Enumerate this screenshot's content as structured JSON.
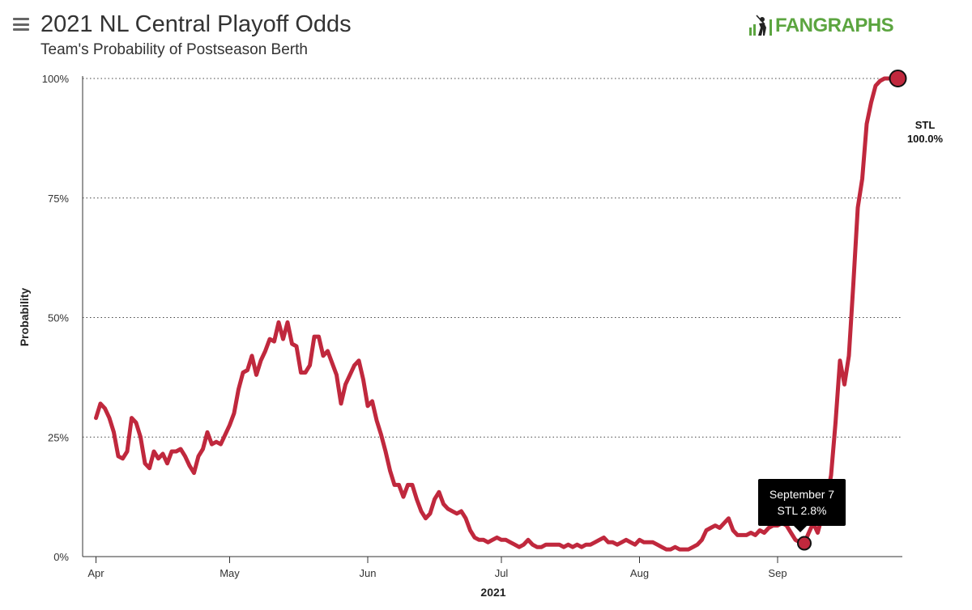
{
  "header": {
    "title": "2021 NL Central Playoff Odds",
    "subtitle": "Team's Probability of Postseason Berth",
    "logo_text": "FANGRAPHS"
  },
  "icons": {
    "menu": "hamburger-menu-icon",
    "logo": "batter-silhouette-icon"
  },
  "colors": {
    "series": "#c0283d",
    "logo": "#5ca540",
    "tooltip_bg": "#000000"
  },
  "tooltip": {
    "date": "September 7",
    "value": "STL 2.8%"
  },
  "end_label": {
    "team": "STL",
    "value": "100.0%"
  },
  "chart_data": {
    "type": "line",
    "title": "2021 NL Central Playoff Odds",
    "subtitle": "Team's Probability of Postseason Berth",
    "xlabel": "2021",
    "ylabel": "Probability",
    "x_range": [
      "2021-04-01",
      "2021-10-03"
    ],
    "ylim": [
      0,
      100
    ],
    "y_ticks": [
      "0%",
      "25%",
      "50%",
      "75%",
      "100%"
    ],
    "y_tick_values": [
      0,
      25,
      50,
      75,
      100
    ],
    "x_ticks": [
      {
        "date": "2021-04-01",
        "label": "Apr"
      },
      {
        "date": "2021-05-01",
        "label": "May"
      },
      {
        "date": "2021-06-01",
        "label": "Jun"
      },
      {
        "date": "2021-07-01",
        "label": "Jul"
      },
      {
        "date": "2021-08-01",
        "label": "Aug"
      },
      {
        "date": "2021-09-01",
        "label": "Sep"
      }
    ],
    "grid": "horizontal-dotted",
    "series": [
      {
        "name": "STL",
        "color": "#c0283d",
        "points": [
          [
            "2021-04-01",
            29
          ],
          [
            "2021-04-02",
            32
          ],
          [
            "2021-04-03",
            31
          ],
          [
            "2021-04-04",
            29
          ],
          [
            "2021-04-05",
            26
          ],
          [
            "2021-04-06",
            21
          ],
          [
            "2021-04-07",
            20.5
          ],
          [
            "2021-04-08",
            22
          ],
          [
            "2021-04-09",
            29
          ],
          [
            "2021-04-10",
            28
          ],
          [
            "2021-04-11",
            25
          ],
          [
            "2021-04-12",
            19.5
          ],
          [
            "2021-04-13",
            18.5
          ],
          [
            "2021-04-14",
            22
          ],
          [
            "2021-04-15",
            20.5
          ],
          [
            "2021-04-16",
            21.5
          ],
          [
            "2021-04-17",
            19.5
          ],
          [
            "2021-04-18",
            22
          ],
          [
            "2021-04-19",
            22
          ],
          [
            "2021-04-20",
            22.5
          ],
          [
            "2021-04-21",
            21
          ],
          [
            "2021-04-22",
            19
          ],
          [
            "2021-04-23",
            17.5
          ],
          [
            "2021-04-24",
            21
          ],
          [
            "2021-04-25",
            22.5
          ],
          [
            "2021-04-26",
            26
          ],
          [
            "2021-04-27",
            23.5
          ],
          [
            "2021-04-28",
            24
          ],
          [
            "2021-04-29",
            23.5
          ],
          [
            "2021-04-30",
            25.5
          ],
          [
            "2021-05-01",
            27.5
          ],
          [
            "2021-05-02",
            30
          ],
          [
            "2021-05-03",
            35
          ],
          [
            "2021-05-04",
            38.5
          ],
          [
            "2021-05-05",
            39
          ],
          [
            "2021-05-06",
            42
          ],
          [
            "2021-05-07",
            38
          ],
          [
            "2021-05-08",
            41
          ],
          [
            "2021-05-09",
            43
          ],
          [
            "2021-05-10",
            45.5
          ],
          [
            "2021-05-11",
            45
          ],
          [
            "2021-05-12",
            49
          ],
          [
            "2021-05-13",
            45.5
          ],
          [
            "2021-05-14",
            49
          ],
          [
            "2021-05-15",
            44.5
          ],
          [
            "2021-05-16",
            44
          ],
          [
            "2021-05-17",
            38.5
          ],
          [
            "2021-05-18",
            38.5
          ],
          [
            "2021-05-19",
            40
          ],
          [
            "2021-05-20",
            46
          ],
          [
            "2021-05-21",
            46
          ],
          [
            "2021-05-22",
            42
          ],
          [
            "2021-05-23",
            43
          ],
          [
            "2021-05-24",
            40.5
          ],
          [
            "2021-05-25",
            38
          ],
          [
            "2021-05-26",
            32
          ],
          [
            "2021-05-27",
            36
          ],
          [
            "2021-05-28",
            38
          ],
          [
            "2021-05-29",
            40
          ],
          [
            "2021-05-30",
            41
          ],
          [
            "2021-05-31",
            37
          ],
          [
            "2021-06-01",
            31.5
          ],
          [
            "2021-06-02",
            32.5
          ],
          [
            "2021-06-03",
            28.5
          ],
          [
            "2021-06-04",
            25.5
          ],
          [
            "2021-06-05",
            22
          ],
          [
            "2021-06-06",
            18
          ],
          [
            "2021-06-07",
            15
          ],
          [
            "2021-06-08",
            15
          ],
          [
            "2021-06-09",
            12.5
          ],
          [
            "2021-06-10",
            15
          ],
          [
            "2021-06-11",
            15
          ],
          [
            "2021-06-12",
            12
          ],
          [
            "2021-06-13",
            9.5
          ],
          [
            "2021-06-14",
            8
          ],
          [
            "2021-06-15",
            9
          ],
          [
            "2021-06-16",
            12
          ],
          [
            "2021-06-17",
            13.5
          ],
          [
            "2021-06-18",
            11
          ],
          [
            "2021-06-19",
            10
          ],
          [
            "2021-06-20",
            9.5
          ],
          [
            "2021-06-21",
            9
          ],
          [
            "2021-06-22",
            9.5
          ],
          [
            "2021-06-23",
            8
          ],
          [
            "2021-06-24",
            5.5
          ],
          [
            "2021-06-25",
            4
          ],
          [
            "2021-06-26",
            3.5
          ],
          [
            "2021-06-27",
            3.5
          ],
          [
            "2021-06-28",
            3
          ],
          [
            "2021-06-29",
            3.5
          ],
          [
            "2021-06-30",
            4
          ],
          [
            "2021-07-01",
            3.5
          ],
          [
            "2021-07-02",
            3.5
          ],
          [
            "2021-07-03",
            3
          ],
          [
            "2021-07-04",
            2.5
          ],
          [
            "2021-07-05",
            2
          ],
          [
            "2021-07-06",
            2.5
          ],
          [
            "2021-07-07",
            3.5
          ],
          [
            "2021-07-08",
            2.5
          ],
          [
            "2021-07-09",
            2
          ],
          [
            "2021-07-10",
            2
          ],
          [
            "2021-07-11",
            2.5
          ],
          [
            "2021-07-12",
            2.5
          ],
          [
            "2021-07-13",
            2.5
          ],
          [
            "2021-07-14",
            2.5
          ],
          [
            "2021-07-15",
            2
          ],
          [
            "2021-07-16",
            2.5
          ],
          [
            "2021-07-17",
            2
          ],
          [
            "2021-07-18",
            2.5
          ],
          [
            "2021-07-19",
            2
          ],
          [
            "2021-07-20",
            2.5
          ],
          [
            "2021-07-21",
            2.5
          ],
          [
            "2021-07-22",
            3
          ],
          [
            "2021-07-23",
            3.5
          ],
          [
            "2021-07-24",
            4
          ],
          [
            "2021-07-25",
            3
          ],
          [
            "2021-07-26",
            3
          ],
          [
            "2021-07-27",
            2.5
          ],
          [
            "2021-07-28",
            3
          ],
          [
            "2021-07-29",
            3.5
          ],
          [
            "2021-07-30",
            3
          ],
          [
            "2021-07-31",
            2.5
          ],
          [
            "2021-08-01",
            3.5
          ],
          [
            "2021-08-02",
            3
          ],
          [
            "2021-08-03",
            3
          ],
          [
            "2021-08-04",
            3
          ],
          [
            "2021-08-05",
            2.5
          ],
          [
            "2021-08-06",
            2
          ],
          [
            "2021-08-07",
            1.5
          ],
          [
            "2021-08-08",
            1.5
          ],
          [
            "2021-08-09",
            2
          ],
          [
            "2021-08-10",
            1.5
          ],
          [
            "2021-08-11",
            1.5
          ],
          [
            "2021-08-12",
            1.5
          ],
          [
            "2021-08-13",
            2
          ],
          [
            "2021-08-14",
            2.5
          ],
          [
            "2021-08-15",
            3.5
          ],
          [
            "2021-08-16",
            5.5
          ],
          [
            "2021-08-17",
            6
          ],
          [
            "2021-08-18",
            6.5
          ],
          [
            "2021-08-19",
            6
          ],
          [
            "2021-08-20",
            7
          ],
          [
            "2021-08-21",
            8
          ],
          [
            "2021-08-22",
            5.5
          ],
          [
            "2021-08-23",
            4.5
          ],
          [
            "2021-08-24",
            4.5
          ],
          [
            "2021-08-25",
            4.5
          ],
          [
            "2021-08-26",
            5
          ],
          [
            "2021-08-27",
            4.5
          ],
          [
            "2021-08-28",
            5.5
          ],
          [
            "2021-08-29",
            5
          ],
          [
            "2021-08-30",
            6
          ],
          [
            "2021-08-31",
            6.5
          ],
          [
            "2021-09-01",
            6.5
          ],
          [
            "2021-09-02",
            7
          ],
          [
            "2021-09-03",
            6.5
          ],
          [
            "2021-09-04",
            5
          ],
          [
            "2021-09-05",
            3.5
          ],
          [
            "2021-09-06",
            3
          ],
          [
            "2021-09-07",
            2.8
          ],
          [
            "2021-09-08",
            5
          ],
          [
            "2021-09-09",
            7
          ],
          [
            "2021-09-10",
            5
          ],
          [
            "2021-09-11",
            8.5
          ],
          [
            "2021-09-12",
            12
          ],
          [
            "2021-09-13",
            17
          ],
          [
            "2021-09-14",
            28
          ],
          [
            "2021-09-15",
            41
          ],
          [
            "2021-09-16",
            36
          ],
          [
            "2021-09-17",
            42
          ],
          [
            "2021-09-18",
            57
          ],
          [
            "2021-09-19",
            73
          ],
          [
            "2021-09-20",
            79
          ],
          [
            "2021-09-21",
            90.5
          ],
          [
            "2021-09-22",
            95
          ],
          [
            "2021-09-23",
            98.5
          ],
          [
            "2021-09-24",
            99.5
          ],
          [
            "2021-09-25",
            100
          ],
          [
            "2021-09-26",
            100
          ],
          [
            "2021-09-27",
            100
          ],
          [
            "2021-09-28",
            100
          ]
        ]
      }
    ],
    "highlighted_points": [
      {
        "date": "2021-09-07",
        "value": 2.8
      },
      {
        "date": "2021-09-28",
        "value": 100
      }
    ]
  }
}
